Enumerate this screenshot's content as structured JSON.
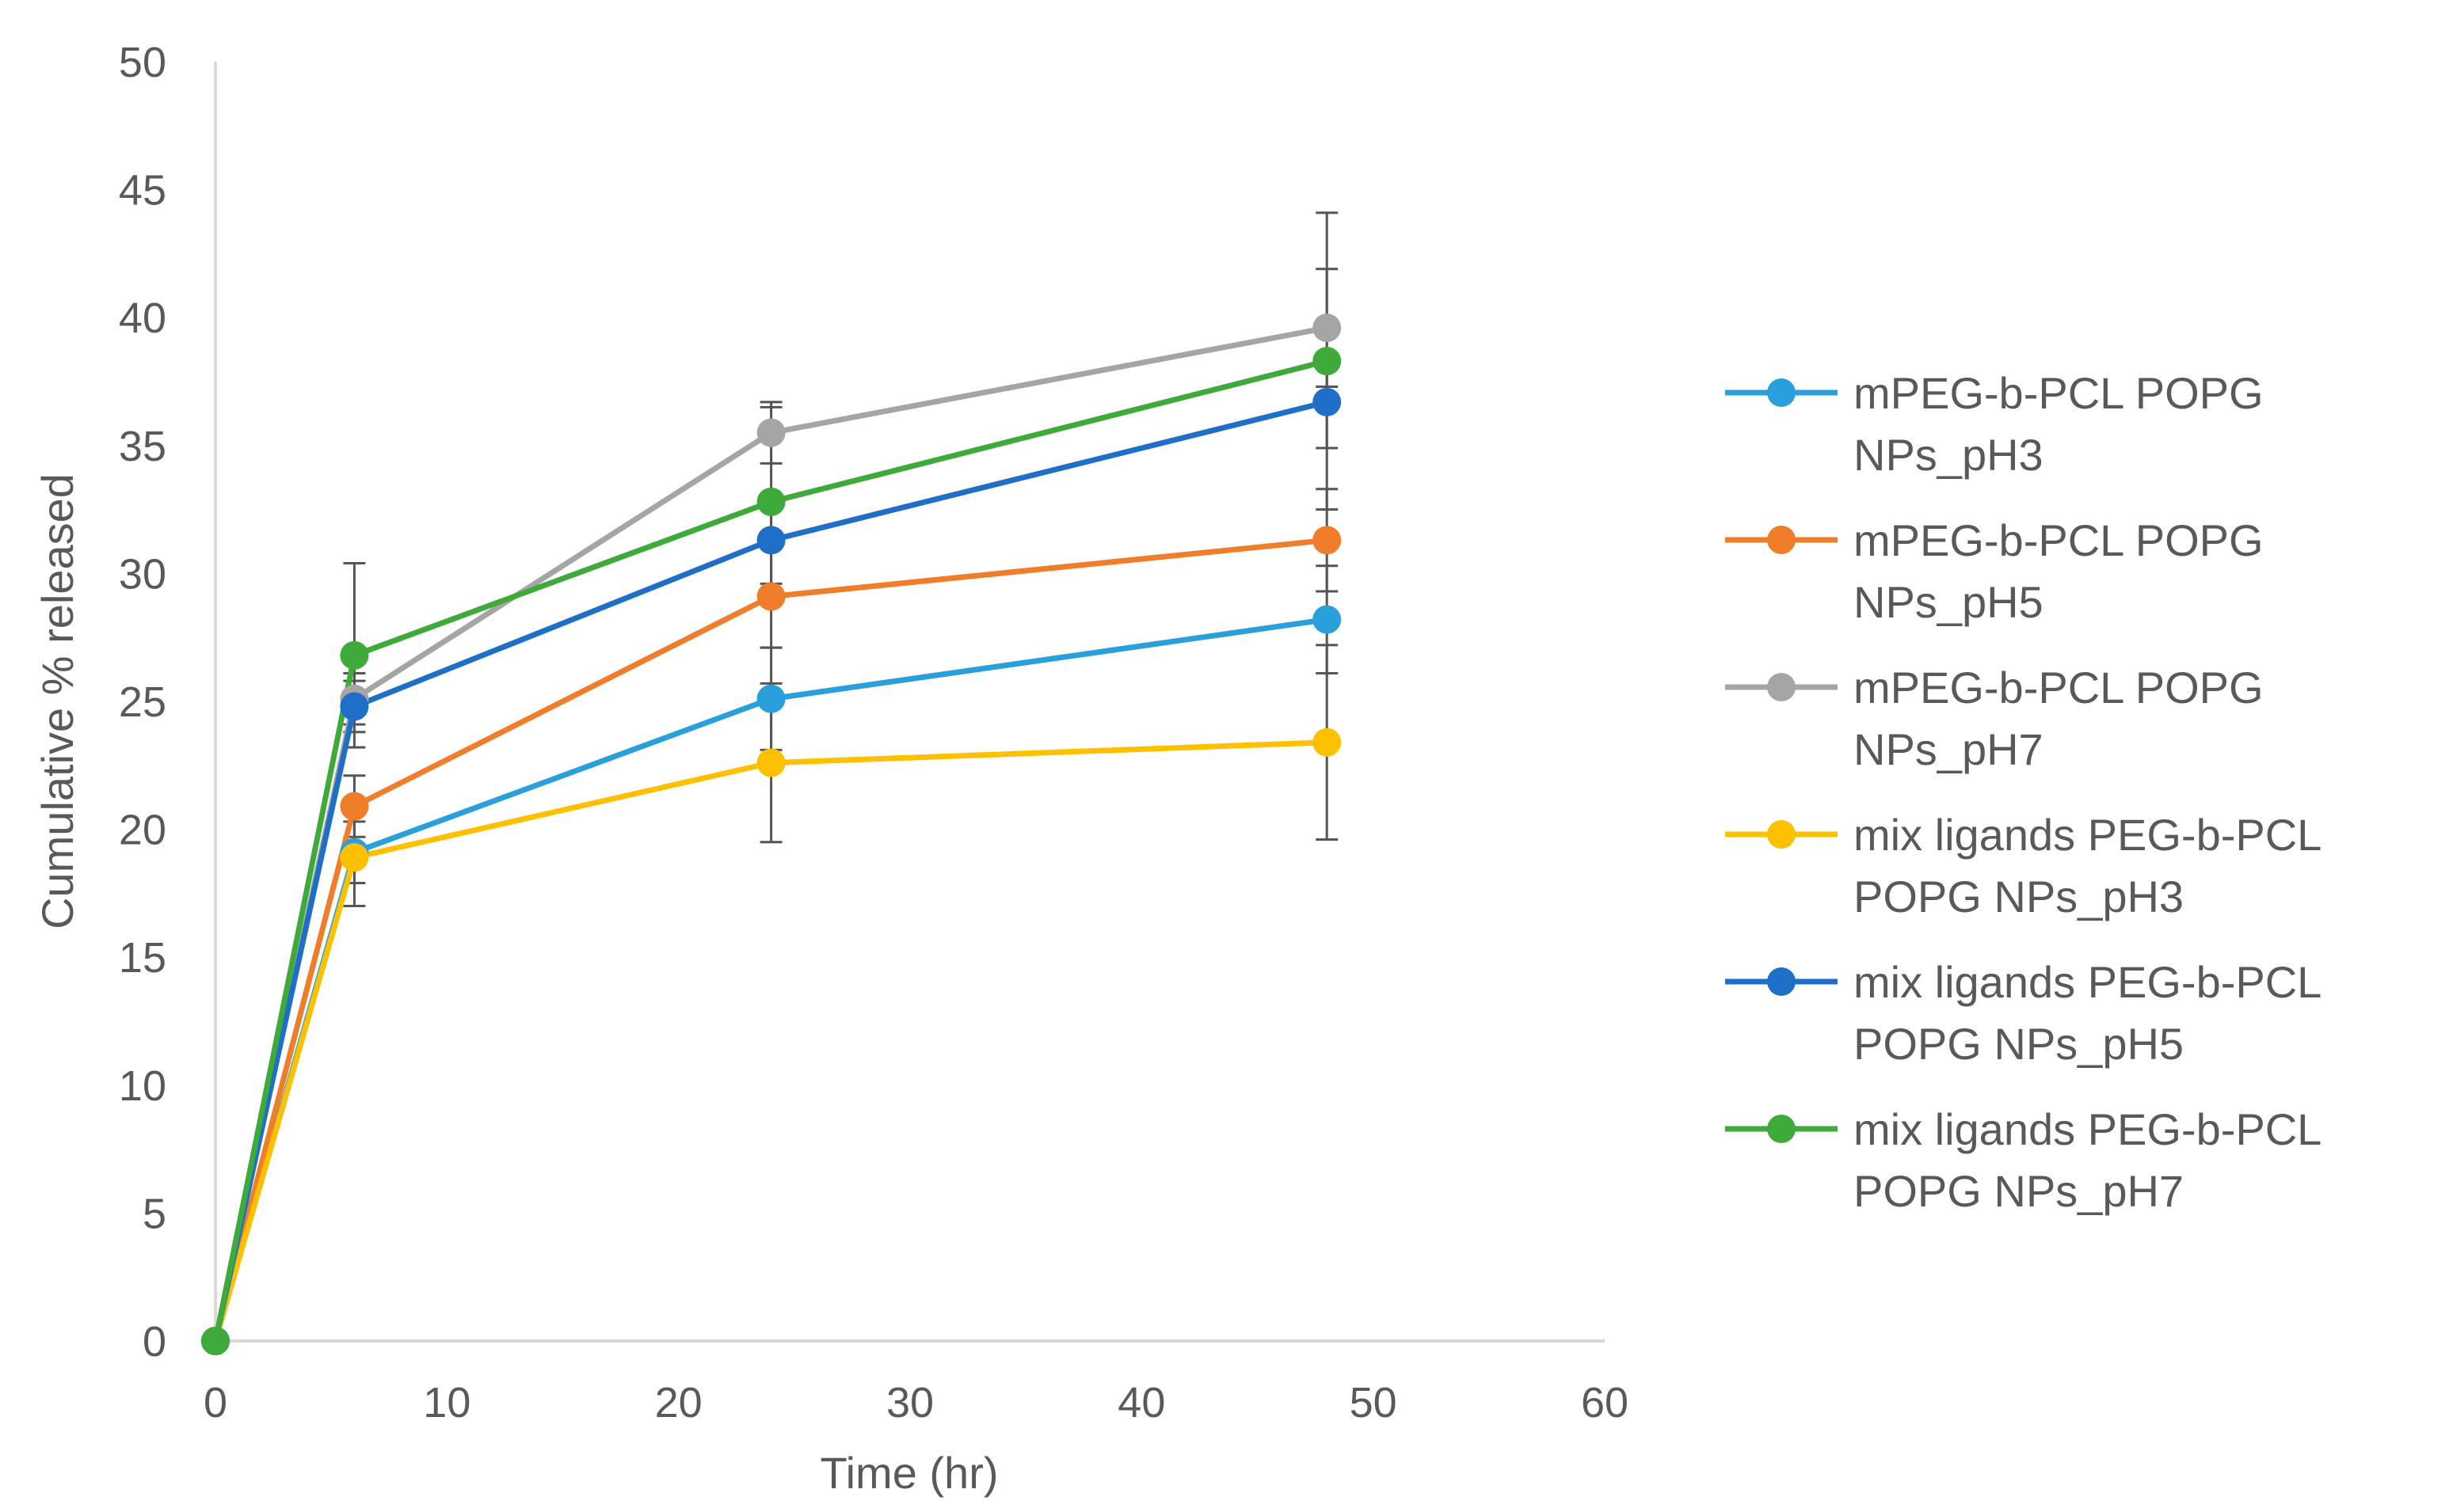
{
  "chart_data": {
    "type": "line",
    "title": "",
    "xlabel": "Time (hr)",
    "ylabel": "Cumulative % released",
    "xlim": [
      0,
      60
    ],
    "ylim": [
      0,
      50
    ],
    "xticks": [
      "0",
      "10",
      "20",
      "30",
      "40",
      "50",
      "60"
    ],
    "yticks": [
      "0",
      "5",
      "10",
      "15",
      "20",
      "25",
      "30",
      "35",
      "40",
      "45",
      "50"
    ],
    "grid": false,
    "legend_position": "right",
    "x": [
      0,
      6,
      24,
      48
    ],
    "series": [
      {
        "name_lines": [
          "mPEG-b-PCL POPG",
          "NPs_pH3"
        ],
        "color": "#29A0DC",
        "values": [
          0,
          19.1,
          25.1,
          28.2
        ],
        "error": [
          0,
          1.2,
          2.0,
          2.1
        ]
      },
      {
        "name_lines": [
          "mPEG-b-PCL POPG",
          "NPs_pH5"
        ],
        "color": "#F07D2A",
        "values": [
          0,
          20.9,
          29.1,
          31.3
        ],
        "error": [
          0,
          1.2,
          2.0,
          2.0
        ]
      },
      {
        "name_lines": [
          "mPEG-b-PCL POPG",
          "NPs_pH7"
        ],
        "color": "#A5A5A5",
        "values": [
          0,
          25.1,
          35.5,
          39.6
        ],
        "error": [
          0,
          1.0,
          1.2,
          2.3
        ]
      },
      {
        "name_lines": [
          "mix ligands PEG-b-PCL",
          "POPG NPs_pH3"
        ],
        "color": "#FFC000",
        "values": [
          0,
          18.9,
          22.6,
          23.4
        ],
        "error": [
          0,
          1.9,
          3.1,
          3.8
        ]
      },
      {
        "name_lines": [
          "mix ligands PEG-b-PCL",
          "POPG NPs_pH5"
        ],
        "color": "#1F6FC8",
        "values": [
          0,
          24.8,
          31.3,
          36.7
        ],
        "error": [
          0,
          1.0,
          1.7,
          1.8
        ]
      },
      {
        "name_lines": [
          "mix ligands PEG-b-PCL",
          "POPG NPs_pH7"
        ],
        "color": "#3EAA3A",
        "values": [
          0,
          26.8,
          32.8,
          38.3
        ],
        "error": [
          0,
          3.6,
          3.7,
          5.8
        ]
      }
    ]
  }
}
